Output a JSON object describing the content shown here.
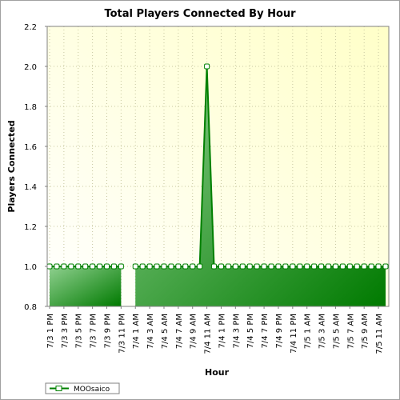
{
  "chart_data": {
    "type": "area",
    "title": "Total Players Connected By Hour",
    "xlabel": "Hour",
    "ylabel": "Players Connected",
    "ylim": [
      0.8,
      2.2
    ],
    "yticks": [
      "0.8",
      "1.0",
      "1.2",
      "1.4",
      "1.6",
      "1.8",
      "2.0",
      "2.2"
    ],
    "grid": true,
    "legend_position": "bottom-left",
    "x_tick_labels": [
      "7/3 1 PM",
      "7/3 3 PM",
      "7/3 5 PM",
      "7/3 7 PM",
      "7/3 9 PM",
      "7/3 11 PM",
      "7/4 1 AM",
      "7/4 3 AM",
      "7/4 5 AM",
      "7/4 7 AM",
      "7/4 9 AM",
      "7/4 11 AM",
      "7/4 1 PM",
      "7/4 3 PM",
      "7/4 5 PM",
      "7/4 7 PM",
      "7/4 9 PM",
      "7/4 11 PM",
      "7/5 1 AM",
      "7/5 3 AM",
      "7/5 5 AM",
      "7/5 7 AM",
      "7/5 9 AM",
      "7/5 11 AM"
    ],
    "series": [
      {
        "name": "MOOsaico",
        "color": "#008000",
        "x": [
          "7/3 1 PM",
          "7/3 2 PM",
          "7/3 3 PM",
          "7/3 4 PM",
          "7/3 5 PM",
          "7/3 6 PM",
          "7/3 7 PM",
          "7/3 8 PM",
          "7/3 9 PM",
          "7/3 10 PM",
          "7/3 11 PM",
          "7/4 12 AM",
          "7/4 1 AM",
          "7/4 2 AM",
          "7/4 3 AM",
          "7/4 4 AM",
          "7/4 5 AM",
          "7/4 6 AM",
          "7/4 7 AM",
          "7/4 8 AM",
          "7/4 9 AM",
          "7/4 10 AM",
          "7/4 11 AM",
          "7/4 12 PM",
          "7/4 1 PM",
          "7/4 2 PM",
          "7/4 3 PM",
          "7/4 4 PM",
          "7/4 5 PM",
          "7/4 6 PM",
          "7/4 7 PM",
          "7/4 8 PM",
          "7/4 9 PM",
          "7/4 10 PM",
          "7/4 11 PM",
          "7/5 12 AM",
          "7/5 1 AM",
          "7/5 2 AM",
          "7/5 3 AM",
          "7/5 4 AM",
          "7/5 5 AM",
          "7/5 6 AM",
          "7/5 7 AM",
          "7/5 8 AM",
          "7/5 9 AM",
          "7/5 10 AM",
          "7/5 11 AM",
          "7/5 12 PM"
        ],
        "values": [
          1,
          1,
          1,
          1,
          1,
          1,
          1,
          1,
          1,
          1,
          1,
          null,
          1,
          1,
          1,
          1,
          1,
          1,
          1,
          1,
          1,
          1,
          2,
          1,
          1,
          1,
          1,
          1,
          1,
          1,
          1,
          1,
          1,
          1,
          1,
          1,
          1,
          1,
          1,
          1,
          1,
          1,
          1,
          1,
          1,
          1,
          1,
          1
        ]
      }
    ]
  }
}
